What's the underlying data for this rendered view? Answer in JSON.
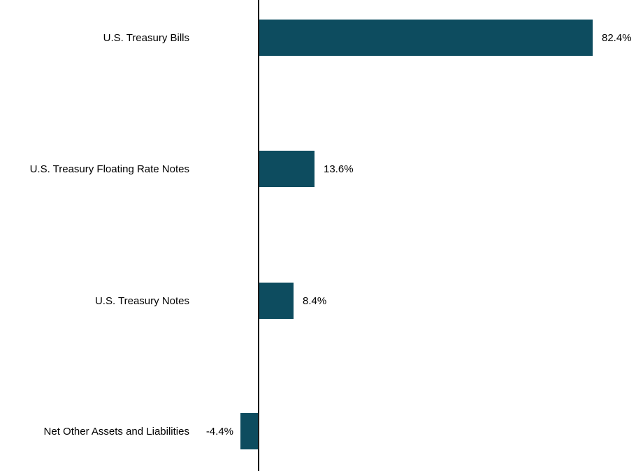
{
  "chart_data": {
    "type": "bar",
    "orientation": "horizontal",
    "title": "",
    "xlabel": "",
    "ylabel": "",
    "categories": [
      "U.S. Treasury Bills",
      "U.S. Treasury Floating Rate Notes",
      "U.S. Treasury Notes",
      "Net Other Assets and Liabilities"
    ],
    "values": [
      82.4,
      13.6,
      8.4,
      -4.4
    ],
    "value_labels": [
      "82.4%",
      "13.6%",
      "8.4%",
      "-4.4%"
    ],
    "unit": "%",
    "bar_color": "#0d4c5f",
    "axis_color": "#1a1a1a",
    "text_color": "#000000",
    "background_color": "#ffffff",
    "grid": false,
    "legend": false,
    "x_axis": {
      "zero_line_visible": true,
      "ticks_visible": false,
      "implied_max": 93
    }
  }
}
